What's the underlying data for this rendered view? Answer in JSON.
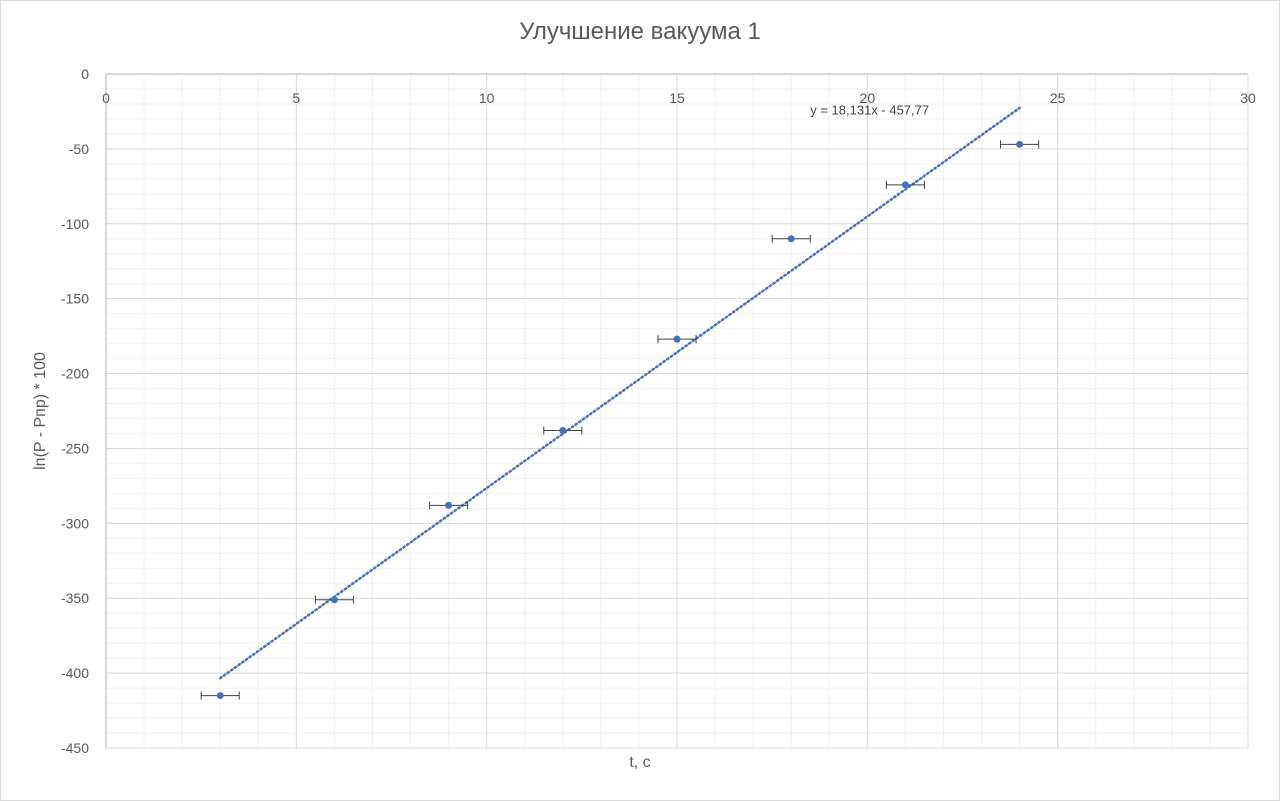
{
  "chart_data": {
    "type": "scatter",
    "title": "Улучшение вакуума 1",
    "xlabel": "t, с",
    "ylabel": "ln(P - Pпр) * 100",
    "xlim": [
      0,
      30
    ],
    "ylim": [
      -450,
      0
    ],
    "x_ticks": [
      0,
      5,
      10,
      15,
      20,
      25,
      30
    ],
    "y_ticks": [
      0,
      -50,
      -100,
      -150,
      -200,
      -250,
      -300,
      -350,
      -400,
      -450
    ],
    "x_tick_labels": [
      "0",
      "5",
      "10",
      "15",
      "20",
      "25",
      "30"
    ],
    "y_tick_labels": [
      "0",
      "-50",
      "-100",
      "-150",
      "-200",
      "-250",
      "-300",
      "-350",
      "-400",
      "-450"
    ],
    "x_minor_step": 1,
    "y_minor_step": 10,
    "grid": true,
    "x_axis_position": "top",
    "series": [
      {
        "x": [
          3,
          6,
          9,
          12,
          15,
          18,
          21,
          24
        ],
        "y": [
          -415,
          -351,
          -288,
          -238,
          -177,
          -110,
          -74,
          -47
        ],
        "x_error": 0.5,
        "color": "#4472c4"
      }
    ],
    "trendline": {
      "type": "linear",
      "slope": 18.131,
      "intercept": -457.77,
      "x_range": [
        3,
        24
      ],
      "style": "dotted",
      "color": "#4472c4",
      "equation_label": "y = 18,131x - 457,77"
    }
  }
}
